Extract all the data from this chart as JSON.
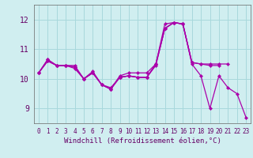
{
  "background_color": "#d0eef0",
  "line_color": "#aa00aa",
  "grid_color": "#a8d8dc",
  "xlabel": "Windchill (Refroidissement éolien,°C)",
  "ylim": [
    8.5,
    12.5
  ],
  "xlim": [
    -0.5,
    23.5
  ],
  "yticks": [
    9,
    10,
    11,
    12
  ],
  "xticks": [
    0,
    1,
    2,
    3,
    4,
    5,
    6,
    7,
    8,
    9,
    10,
    11,
    12,
    13,
    14,
    15,
    16,
    17,
    18,
    19,
    20,
    21,
    22,
    23
  ],
  "series": [
    [
      10.2,
      10.65,
      10.45,
      10.45,
      10.45,
      10.0,
      10.25,
      9.8,
      9.7,
      10.05,
      10.1,
      10.05,
      10.05,
      10.45,
      11.7,
      11.9,
      11.85,
      10.5,
      10.1,
      9.0,
      10.1,
      9.7,
      9.5,
      8.7
    ],
    [
      10.2,
      10.65,
      10.45,
      10.45,
      10.4,
      10.0,
      10.2,
      9.8,
      9.65,
      10.05,
      10.1,
      10.05,
      10.05,
      10.5,
      11.85,
      11.9,
      11.85,
      10.55,
      null,
      null,
      null,
      null,
      null,
      null
    ],
    [
      10.2,
      10.6,
      10.45,
      10.45,
      10.4,
      10.0,
      10.2,
      9.8,
      9.65,
      10.05,
      10.1,
      10.05,
      10.05,
      10.5,
      11.7,
      11.9,
      11.85,
      10.55,
      10.5,
      10.5,
      10.5,
      10.5,
      null,
      null
    ],
    [
      10.2,
      10.6,
      10.45,
      10.45,
      10.35,
      10.0,
      10.2,
      9.8,
      9.65,
      10.1,
      10.2,
      10.2,
      10.2,
      10.5,
      11.7,
      11.9,
      11.85,
      10.55,
      10.5,
      10.45,
      10.45,
      null,
      null,
      null
    ]
  ]
}
